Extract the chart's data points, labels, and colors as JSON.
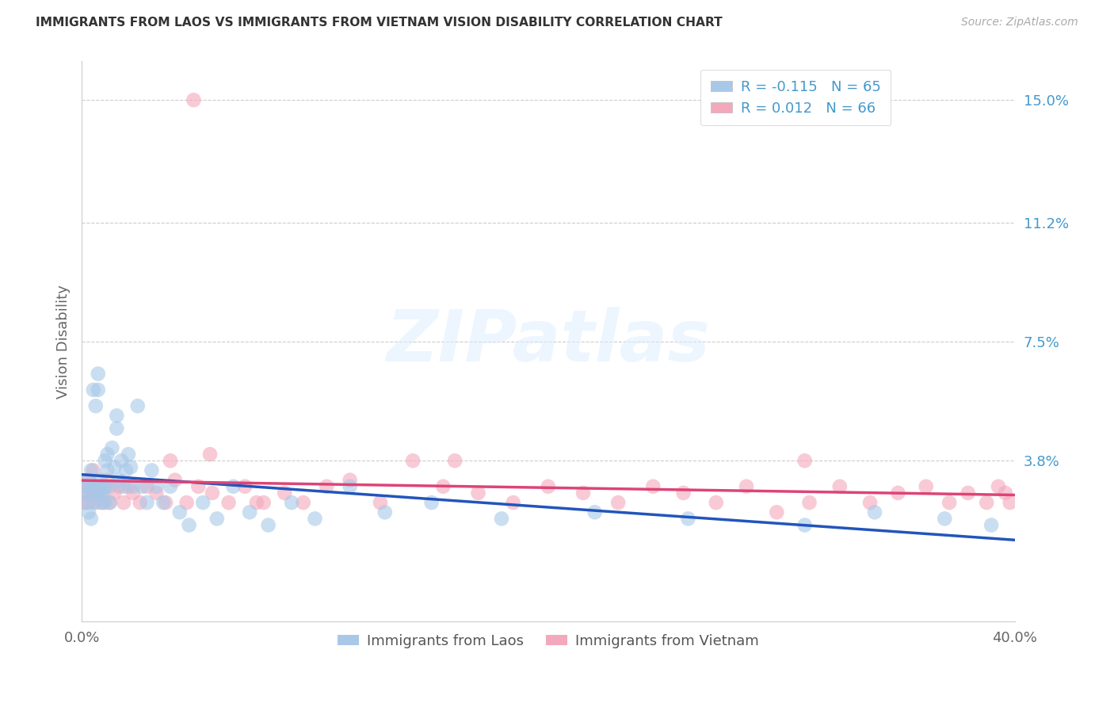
{
  "title": "IMMIGRANTS FROM LAOS VS IMMIGRANTS FROM VIETNAM VISION DISABILITY CORRELATION CHART",
  "source": "Source: ZipAtlas.com",
  "ylabel": "Vision Disability",
  "ytick_labels": [
    "3.8%",
    "7.5%",
    "11.2%",
    "15.0%"
  ],
  "ytick_vals": [
    0.038,
    0.075,
    0.112,
    0.15
  ],
  "xmin": 0.0,
  "xmax": 0.4,
  "ymin": -0.012,
  "ymax": 0.162,
  "laos_R": -0.115,
  "laos_N": 65,
  "vietnam_R": 0.012,
  "vietnam_N": 66,
  "laos_color": "#a8c8e8",
  "vietnam_color": "#f4a8bc",
  "laos_line_color": "#2255bb",
  "vietnam_line_color": "#dd4477",
  "legend_laos": "Immigrants from Laos",
  "legend_vietnam": "Immigrants from Vietnam",
  "watermark_text": "ZIPatlas",
  "background_color": "#ffffff",
  "laos_x": [
    0.001,
    0.002,
    0.002,
    0.003,
    0.003,
    0.004,
    0.004,
    0.004,
    0.005,
    0.005,
    0.005,
    0.006,
    0.006,
    0.007,
    0.007,
    0.007,
    0.008,
    0.008,
    0.008,
    0.009,
    0.009,
    0.01,
    0.01,
    0.01,
    0.011,
    0.011,
    0.012,
    0.012,
    0.013,
    0.014,
    0.015,
    0.015,
    0.016,
    0.017,
    0.018,
    0.019,
    0.02,
    0.021,
    0.022,
    0.024,
    0.026,
    0.028,
    0.03,
    0.032,
    0.035,
    0.038,
    0.042,
    0.046,
    0.052,
    0.058,
    0.065,
    0.072,
    0.08,
    0.09,
    0.1,
    0.115,
    0.13,
    0.15,
    0.18,
    0.22,
    0.26,
    0.31,
    0.34,
    0.37,
    0.39
  ],
  "laos_y": [
    0.028,
    0.03,
    0.025,
    0.032,
    0.022,
    0.028,
    0.035,
    0.02,
    0.03,
    0.025,
    0.06,
    0.055,
    0.03,
    0.028,
    0.065,
    0.06,
    0.032,
    0.028,
    0.025,
    0.03,
    0.028,
    0.038,
    0.03,
    0.025,
    0.04,
    0.035,
    0.03,
    0.025,
    0.042,
    0.036,
    0.052,
    0.048,
    0.032,
    0.038,
    0.03,
    0.035,
    0.04,
    0.036,
    0.03,
    0.055,
    0.03,
    0.025,
    0.035,
    0.03,
    0.025,
    0.03,
    0.022,
    0.018,
    0.025,
    0.02,
    0.03,
    0.022,
    0.018,
    0.025,
    0.02,
    0.03,
    0.022,
    0.025,
    0.02,
    0.022,
    0.02,
    0.018,
    0.022,
    0.02,
    0.018
  ],
  "vietnam_x": [
    0.001,
    0.002,
    0.002,
    0.003,
    0.003,
    0.004,
    0.005,
    0.005,
    0.006,
    0.006,
    0.007,
    0.008,
    0.009,
    0.01,
    0.011,
    0.012,
    0.014,
    0.016,
    0.018,
    0.02,
    0.022,
    0.025,
    0.028,
    0.032,
    0.036,
    0.04,
    0.045,
    0.05,
    0.056,
    0.063,
    0.07,
    0.078,
    0.087,
    0.095,
    0.105,
    0.115,
    0.128,
    0.142,
    0.155,
    0.17,
    0.185,
    0.2,
    0.215,
    0.23,
    0.245,
    0.258,
    0.272,
    0.285,
    0.298,
    0.312,
    0.325,
    0.338,
    0.35,
    0.362,
    0.372,
    0.38,
    0.388,
    0.393,
    0.396,
    0.398,
    0.16,
    0.038,
    0.055,
    0.075,
    0.31,
    0.048
  ],
  "vietnam_y": [
    0.025,
    0.03,
    0.028,
    0.032,
    0.025,
    0.03,
    0.028,
    0.035,
    0.028,
    0.025,
    0.03,
    0.028,
    0.025,
    0.03,
    0.032,
    0.025,
    0.028,
    0.03,
    0.025,
    0.03,
    0.028,
    0.025,
    0.03,
    0.028,
    0.025,
    0.032,
    0.025,
    0.03,
    0.028,
    0.025,
    0.03,
    0.025,
    0.028,
    0.025,
    0.03,
    0.032,
    0.025,
    0.038,
    0.03,
    0.028,
    0.025,
    0.03,
    0.028,
    0.025,
    0.03,
    0.028,
    0.025,
    0.03,
    0.022,
    0.025,
    0.03,
    0.025,
    0.028,
    0.03,
    0.025,
    0.028,
    0.025,
    0.03,
    0.028,
    0.025,
    0.038,
    0.038,
    0.04,
    0.025,
    0.038,
    0.15
  ]
}
